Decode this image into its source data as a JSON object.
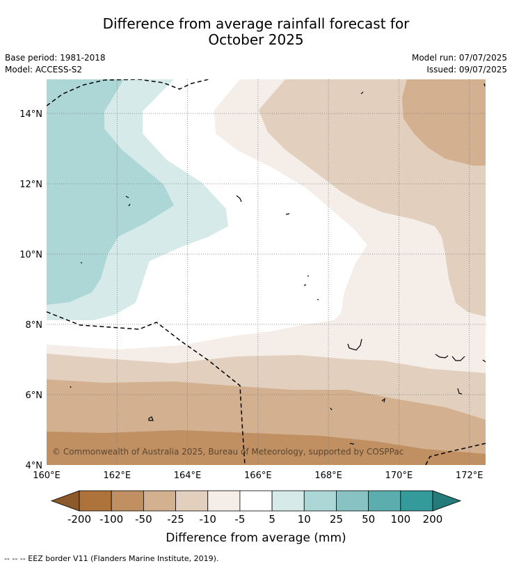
{
  "title": {
    "line1": "Difference from average rainfall forecast for",
    "line2": "October 2025"
  },
  "meta": {
    "base_period": "Base period: 1981-2018",
    "model": "Model: ACCESS-S2",
    "model_run": "Model run: 07/07/2025",
    "issued": "Issued: 09/07/2025"
  },
  "map": {
    "lon_ticks": [
      "160°E",
      "162°E",
      "164°E",
      "166°E",
      "168°E",
      "170°E",
      "172°E"
    ],
    "lat_ticks": [
      "14°N",
      "12°N",
      "10°N",
      "8°N",
      "6°N",
      "4°N"
    ],
    "copyright": "© Commonwealth of Australia 2025, Bureau of Meteorology, supported by COSPPac"
  },
  "colorbar": {
    "labels": [
      "-200",
      "-100",
      "-50",
      "-25",
      "-10",
      "-5",
      "5",
      "10",
      "25",
      "50",
      "100",
      "200"
    ],
    "colors": [
      "#8c5a2a",
      "#ae733b",
      "#c09062",
      "#d2b090",
      "#e2cfbd",
      "#f4ede8",
      "#ffffff",
      "#d6eae9",
      "#add6d6",
      "#88c2c3",
      "#5cadae",
      "#359a9a",
      "#257a7a"
    ],
    "title": "Difference from average (mm)"
  },
  "footer": "--  --  -- EEZ border V11 (Flanders Marine Institute, 2019)."
}
